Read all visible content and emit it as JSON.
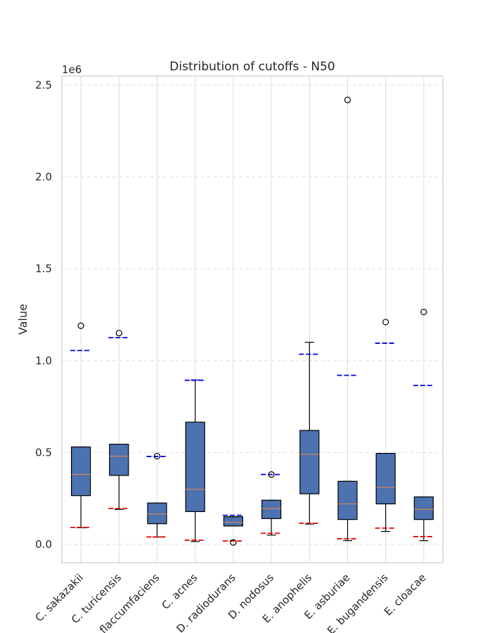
{
  "chart_data": {
    "type": "box",
    "title": "Distribution of cutoffs - N50",
    "ylabel": "Value",
    "xlabel": "",
    "y_offset_label": "1e6",
    "ylim": [
      -100000,
      2550000
    ],
    "yticks": [
      0.0,
      0.5,
      1.0,
      1.5,
      2.0,
      2.5
    ],
    "ytick_labels": [
      "0.0",
      "0.5",
      "1.0",
      "1.5",
      "2.0",
      "2.5"
    ],
    "grid": true,
    "colors": {
      "box_fill": "#4c72b0",
      "median": "#dd8452",
      "upper_cutoff": "#0000ee",
      "lower_cutoff": "#ee0000",
      "grid": "#dddddd",
      "spine": "#cccccc"
    },
    "categories": [
      "C. sakazakii",
      "C. turicensis",
      "C. flaccumfaciens",
      "C. acnes",
      "D. radiodurans",
      "D. nodosus",
      "E. anophelis",
      "E. asburiae",
      "E. bugandensis",
      "E. cloacae"
    ],
    "boxes": [
      {
        "whislo": 90000,
        "q1": 265000,
        "med": 380000,
        "q3": 530000,
        "whishi": 530000,
        "fliers": [
          1190000
        ],
        "upper_cutoff": 1055000,
        "lower_cutoff": 92000
      },
      {
        "whislo": 190000,
        "q1": 375000,
        "med": 480000,
        "q3": 545000,
        "whishi": 545000,
        "fliers": [
          1150000
        ],
        "upper_cutoff": 1125000,
        "lower_cutoff": 195000
      },
      {
        "whislo": 40000,
        "q1": 112000,
        "med": 165000,
        "q3": 225000,
        "whishi": 225000,
        "fliers": [
          480000
        ],
        "upper_cutoff": 478000,
        "lower_cutoff": 40000
      },
      {
        "whislo": 15000,
        "q1": 178000,
        "med": 300000,
        "q3": 665000,
        "whishi": 895000,
        "fliers": [],
        "upper_cutoff": 893000,
        "lower_cutoff": 22000
      },
      {
        "whislo": 100000,
        "q1": 100000,
        "med": 120000,
        "q3": 150000,
        "whishi": 150000,
        "fliers": [
          10000
        ],
        "upper_cutoff": 158000,
        "lower_cutoff": 18000
      },
      {
        "whislo": 50000,
        "q1": 140000,
        "med": 195000,
        "q3": 240000,
        "whishi": 240000,
        "fliers": [
          380000
        ],
        "upper_cutoff": 380000,
        "lower_cutoff": 60000
      },
      {
        "whislo": 110000,
        "q1": 275000,
        "med": 490000,
        "q3": 620000,
        "whishi": 1100000,
        "fliers": [],
        "upper_cutoff": 1035000,
        "lower_cutoff": 115000
      },
      {
        "whislo": 20000,
        "q1": 135000,
        "med": 220000,
        "q3": 343000,
        "whishi": 343000,
        "fliers": [
          2420000
        ],
        "upper_cutoff": 920000,
        "lower_cutoff": 30000
      },
      {
        "whislo": 70000,
        "q1": 220000,
        "med": 310000,
        "q3": 495000,
        "whishi": 495000,
        "fliers": [
          1210000
        ],
        "upper_cutoff": 1095000,
        "lower_cutoff": 88000
      },
      {
        "whislo": 20000,
        "q1": 135000,
        "med": 190000,
        "q3": 258000,
        "whishi": 258000,
        "fliers": [
          1265000
        ],
        "upper_cutoff": 865000,
        "lower_cutoff": 42000
      }
    ]
  }
}
